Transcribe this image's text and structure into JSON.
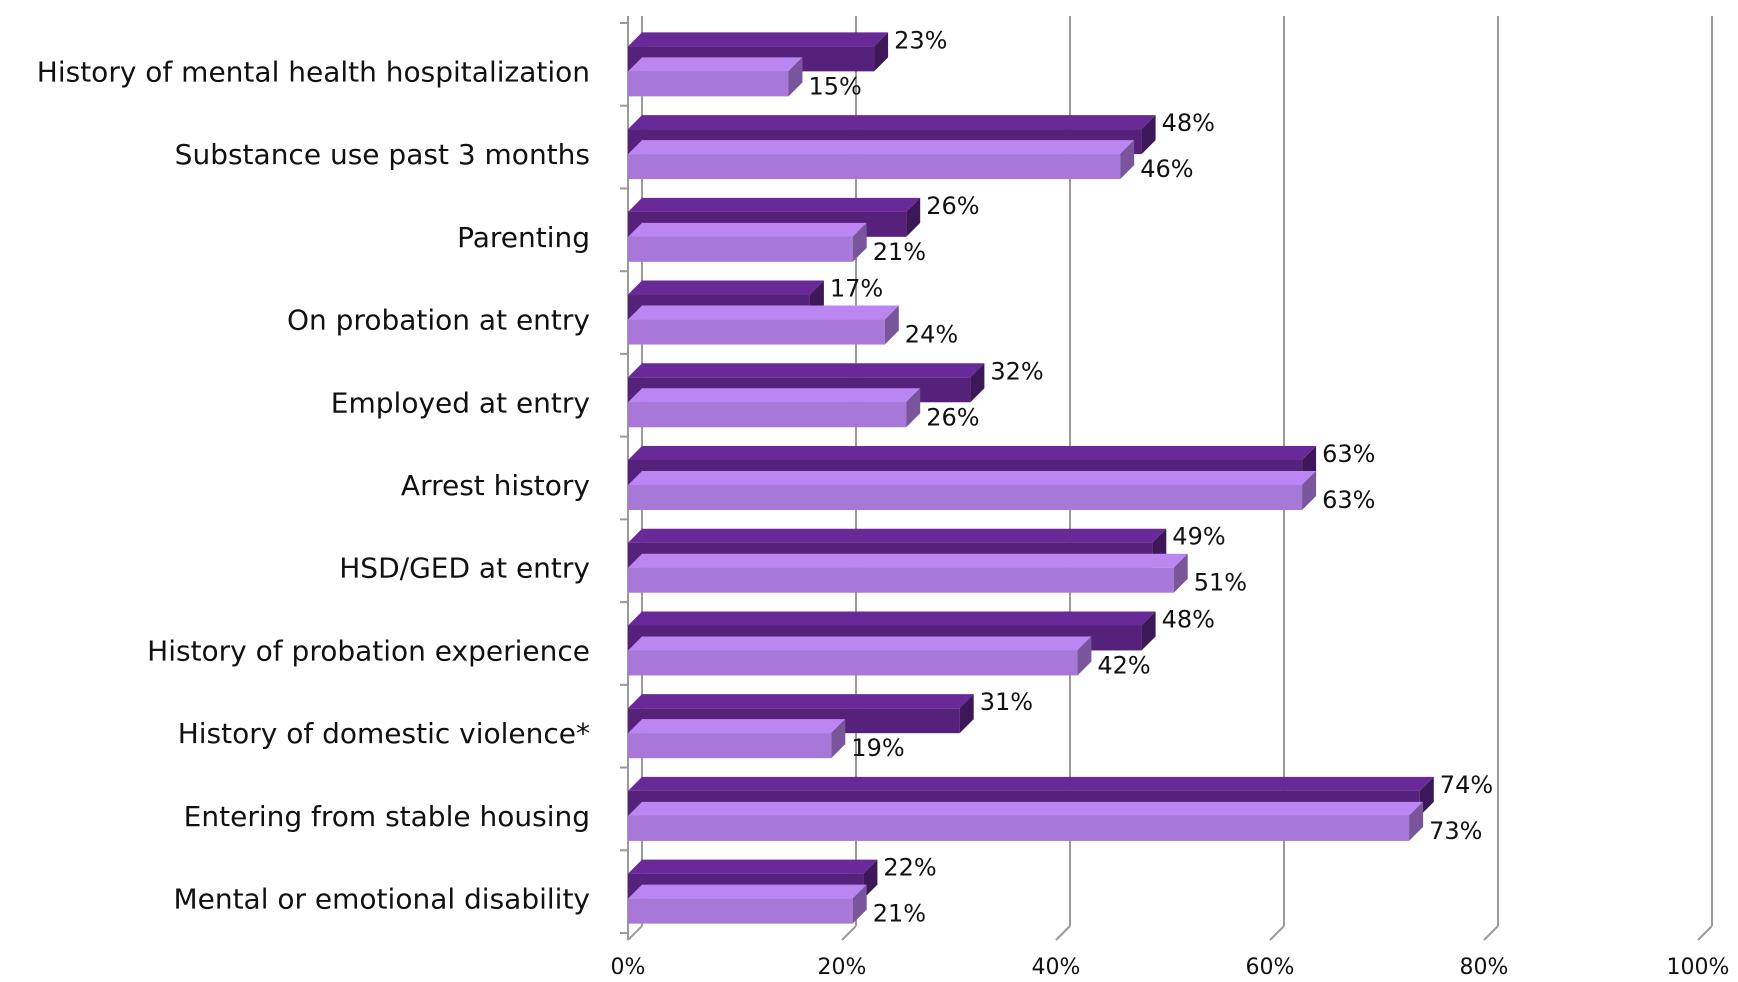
{
  "chart_data": {
    "type": "bar",
    "orientation": "horizontal",
    "style": "3d-clustered",
    "categories": [
      "History of mental health hospitalization",
      "Substance use past 3 months",
      "Parenting",
      "On probation at entry",
      "Employed at entry",
      "Arrest history",
      "HSD/GED at entry",
      "History of probation experience",
      "History of domestic violence*",
      "Entering from stable housing",
      "Mental or emotional disability"
    ],
    "series": [
      {
        "color": "#55217a",
        "values": [
          23,
          48,
          26,
          17,
          32,
          63,
          49,
          48,
          31,
          74,
          22
        ],
        "labels": [
          "23%",
          "48%",
          "26%",
          "17%",
          "32%",
          "63%",
          "49%",
          "48%",
          "31%",
          "74%",
          "22%"
        ]
      },
      {
        "color": "#a878d8",
        "values": [
          15,
          46,
          21,
          24,
          26,
          63,
          51,
          42,
          19,
          73,
          21
        ],
        "labels": [
          "15%",
          "46%",
          "21%",
          "24%",
          "26%",
          "63%",
          "51%",
          "42%",
          "19%",
          "73%",
          "21%"
        ]
      }
    ],
    "xlim": [
      0,
      100
    ],
    "xticks": [
      "0%",
      "20%",
      "40%",
      "60%",
      "80%",
      "100%"
    ],
    "grid": true,
    "legend": "none"
  }
}
